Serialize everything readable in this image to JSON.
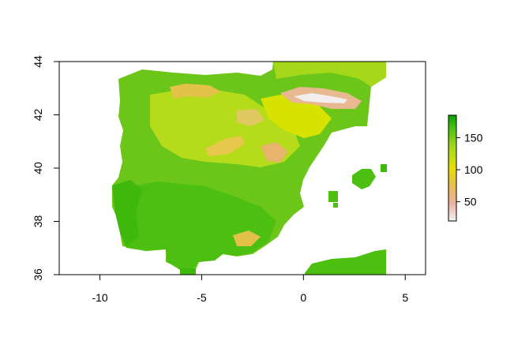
{
  "chart_data": {
    "type": "heatmap",
    "title": "",
    "xlabel": "",
    "ylabel": "",
    "xlim": [
      -12,
      6
    ],
    "ylim": [
      36,
      44
    ],
    "x_ticks": [
      -10,
      -5,
      0,
      5
    ],
    "y_ticks": [
      36,
      38,
      40,
      42,
      44
    ],
    "x_tick_labels": [
      "-10",
      "-5",
      "0",
      "5"
    ],
    "y_tick_labels": [
      "36",
      "38",
      "40",
      "42",
      "44"
    ],
    "legend": {
      "type": "colorbar",
      "placement": "right",
      "range": [
        20,
        185
      ],
      "ticks": [
        50,
        100,
        150
      ],
      "tick_labels": [
        "50",
        "100",
        "150"
      ],
      "colors": [
        "#f2f2f2",
        "#ecb0a0",
        "#e8c04a",
        "#e6e000",
        "#a4d81a",
        "#4cbf10",
        "#00a600"
      ]
    },
    "grid": false
  }
}
